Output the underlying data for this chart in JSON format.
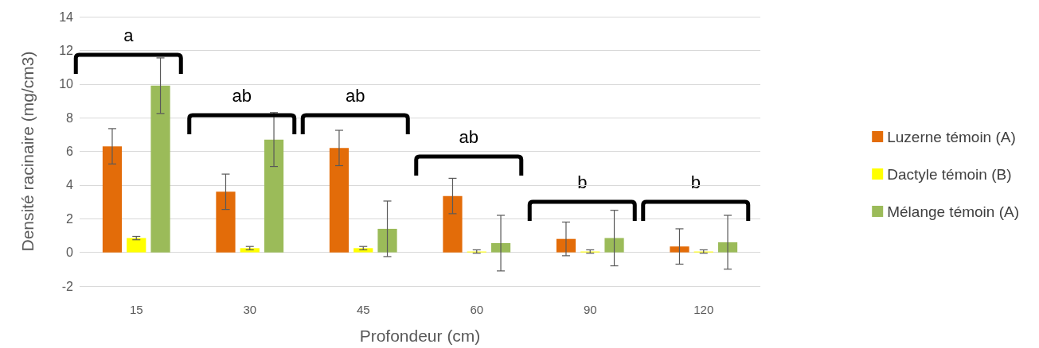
{
  "chart_data": {
    "type": "bar",
    "xlabel": "Profondeur (cm)",
    "ylabel": "Densité racinaire (mg/cm3)",
    "categories": [
      "15",
      "30",
      "45",
      "60",
      "90",
      "120"
    ],
    "series": [
      {
        "name": "Luzerne témoin (A)",
        "color": "#e36c09",
        "values": [
          6.3,
          3.6,
          6.2,
          3.35,
          0.8,
          0.35
        ],
        "errors": [
          1.05,
          1.05,
          1.05,
          1.05,
          1.0,
          1.05
        ]
      },
      {
        "name": "Dactyle témoin (B)",
        "color": "#ffff00",
        "values": [
          0.85,
          0.25,
          0.25,
          0.05,
          0.05,
          0.05
        ],
        "errors": [
          0.1,
          0.1,
          0.1,
          0.1,
          0.1,
          0.1
        ]
      },
      {
        "name": "Mélange témoin (A)",
        "color": "#9bbb59",
        "values": [
          9.9,
          6.7,
          1.4,
          0.55,
          0.85,
          0.6
        ],
        "errors": [
          1.65,
          1.6,
          1.65,
          1.65,
          1.65,
          1.6
        ]
      }
    ],
    "annotations": [
      "a",
      "ab",
      "ab",
      "ab",
      "b",
      "b"
    ],
    "ylim": [
      -2,
      14
    ],
    "yticks": [
      -2,
      0,
      2,
      4,
      6,
      8,
      10,
      12,
      14
    ],
    "grid": "y",
    "legend": "right"
  }
}
